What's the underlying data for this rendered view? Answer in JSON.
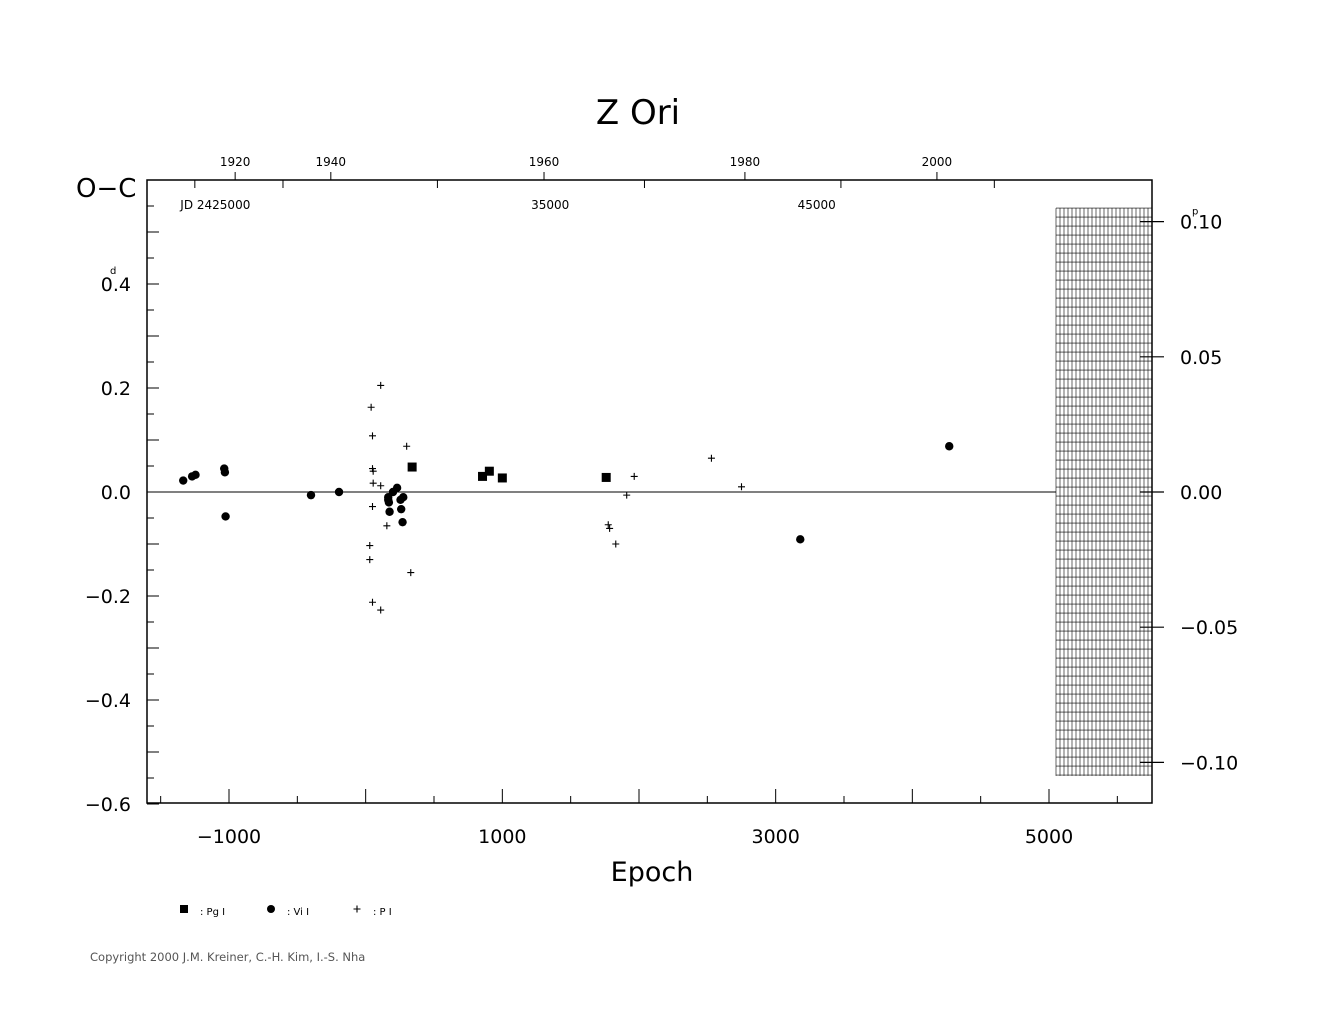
{
  "chart_data": {
    "type": "scatter",
    "title": "Z  Ori",
    "xlabel": "Epoch",
    "ylabel": "O−C",
    "y_unit_mark": "d",
    "right_unit_mark": "p",
    "xlim": [
      -1600,
      5750
    ],
    "ylim": [
      -0.6,
      0.6
    ],
    "x_ticks": [
      -1000,
      1000,
      3000,
      5000
    ],
    "x_tick_labels": [
      "−1000",
      "1000",
      "3000",
      "5000"
    ],
    "y_ticks": [
      -0.6,
      -0.4,
      -0.2,
      0.0,
      0.2,
      0.4
    ],
    "y_tick_labels": [
      "−0.6",
      "−0.4",
      "−0.2",
      "0.0",
      "0.2",
      "0.4"
    ],
    "right_ticks": [
      0.1,
      0.05,
      0.0,
      -0.05,
      -0.1
    ],
    "right_tick_labels": [
      "0.10",
      "0.05",
      "0.00",
      "−0.05",
      "−0.10"
    ],
    "right_scale_days_per_unit": 5.2,
    "year_ticks": [
      {
        "label": "1920",
        "epoch": -955
      },
      {
        "label": "1940",
        "epoch": -255
      },
      {
        "label": "1960",
        "epoch": 1305
      },
      {
        "label": "1980",
        "epoch": 2775
      },
      {
        "label": "2000",
        "epoch": 4180
      }
    ],
    "jd_labels": [
      {
        "label": "JD  2425000",
        "epoch": -1100
      },
      {
        "label": "35000",
        "epoch": 1350
      },
      {
        "label": "45000",
        "epoch": 3300
      }
    ],
    "zero_line": true,
    "grid": false,
    "series": [
      {
        "name": ": Pg  I",
        "marker": "square",
        "points": [
          {
            "x": 340,
            "y": 0.048
          },
          {
            "x": 855,
            "y": 0.03
          },
          {
            "x": 905,
            "y": 0.04
          },
          {
            "x": 1000,
            "y": 0.027
          },
          {
            "x": 1760,
            "y": 0.028
          }
        ]
      },
      {
        "name": ": Vi  I",
        "marker": "circle",
        "points": [
          {
            "x": -1335,
            "y": 0.022
          },
          {
            "x": -1270,
            "y": 0.03
          },
          {
            "x": -1245,
            "y": 0.033
          },
          {
            "x": -1035,
            "y": 0.045
          },
          {
            "x": -1030,
            "y": 0.038
          },
          {
            "x": -1025,
            "y": -0.047
          },
          {
            "x": -400,
            "y": -0.006
          },
          {
            "x": -195,
            "y": 0.0
          },
          {
            "x": 165,
            "y": -0.01
          },
          {
            "x": 165,
            "y": -0.015
          },
          {
            "x": 170,
            "y": -0.02
          },
          {
            "x": 175,
            "y": -0.038
          },
          {
            "x": 200,
            "y": 0.0
          },
          {
            "x": 230,
            "y": 0.008
          },
          {
            "x": 255,
            "y": -0.015
          },
          {
            "x": 260,
            "y": -0.033
          },
          {
            "x": 270,
            "y": -0.058
          },
          {
            "x": 275,
            "y": -0.01
          },
          {
            "x": 3180,
            "y": -0.091
          },
          {
            "x": 4270,
            "y": 0.088
          }
        ]
      },
      {
        "name": ": P  I",
        "marker": "plus",
        "points": [
          {
            "x": 40,
            "y": 0.163
          },
          {
            "x": 110,
            "y": 0.205
          },
          {
            "x": 110,
            "y": -0.227
          },
          {
            "x": 50,
            "y": 0.108
          },
          {
            "x": 50,
            "y": -0.212
          },
          {
            "x": 50,
            "y": 0.045
          },
          {
            "x": 55,
            "y": 0.04
          },
          {
            "x": 55,
            "y": 0.017
          },
          {
            "x": 50,
            "y": -0.028
          },
          {
            "x": 30,
            "y": -0.103
          },
          {
            "x": 30,
            "y": -0.13
          },
          {
            "x": 110,
            "y": 0.012
          },
          {
            "x": 155,
            "y": -0.065
          },
          {
            "x": 300,
            "y": 0.088
          },
          {
            "x": 330,
            "y": -0.155
          },
          {
            "x": 1775,
            "y": -0.063
          },
          {
            "x": 1785,
            "y": -0.07
          },
          {
            "x": 1830,
            "y": -0.1
          },
          {
            "x": 1910,
            "y": -0.006
          },
          {
            "x": 1965,
            "y": 0.03
          },
          {
            "x": 2530,
            "y": 0.065
          },
          {
            "x": 2750,
            "y": 0.01
          }
        ]
      }
    ]
  },
  "footer": {
    "copyright": "Copyright 2000 J.M. Kreiner, C.-H. Kim, I.-S. Nha"
  }
}
